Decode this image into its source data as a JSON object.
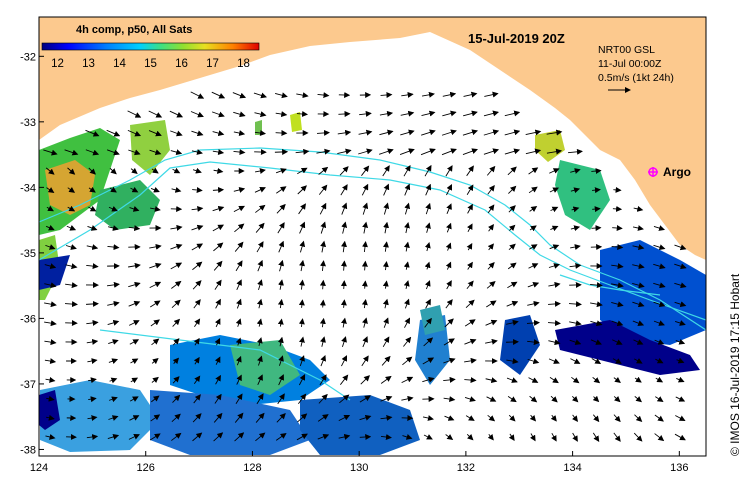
{
  "map": {
    "title_date": "15-Jul-2019 20Z",
    "colorbar": {
      "title": "4h comp, p50, All Sats",
      "ticks": [
        "12",
        "13",
        "14",
        "15",
        "16",
        "17",
        "18"
      ],
      "min": 11.5,
      "max": 18.5
    },
    "legend": {
      "line1": "NRT00 GSL",
      "line2": "11-Jul 00:00Z",
      "line3": "0.5m/s (1kt 24h)"
    },
    "argo_label": "Argo",
    "credit": "© IMOS 16-Jul-2019 17:15 Hobart",
    "lon_ticks": [
      "124",
      "126",
      "128",
      "130",
      "132",
      "134",
      "136"
    ],
    "lat_ticks": [
      "-32",
      "-33",
      "-34",
      "-35",
      "-36",
      "-37",
      "-38"
    ],
    "lon_range": [
      124,
      136.5
    ],
    "lat_range": [
      -38.1,
      -31.4
    ],
    "colors": {
      "land": "#fcc98e",
      "ocean": "#ffffff",
      "arrows": "#000000",
      "contours": "#3fd9e6",
      "argo": "#ff00ff",
      "sst_cold": "#000080",
      "sst_warm": "#e65a00"
    }
  }
}
